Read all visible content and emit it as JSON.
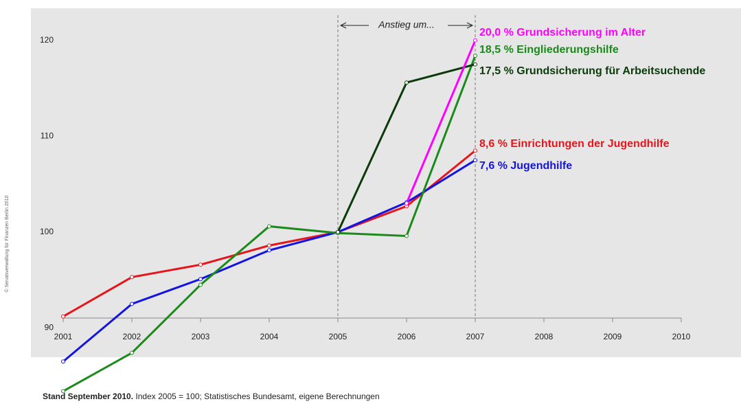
{
  "chart_data": {
    "type": "line",
    "annotation": "Anstieg um...",
    "credit": "© Senatsverwaltung für Finanzen Berlin 2010",
    "footnote_bold": "Stand September 2010.",
    "footnote": "Index 2005 = 100; Statistisches Bundesamt, eigene Berechnungen",
    "x": [
      2001,
      2002,
      2003,
      2004,
      2005,
      2006,
      2007,
      2008,
      2009,
      2010
    ],
    "xlim": [
      2001,
      2010
    ],
    "xticks": [
      2001,
      2002,
      2003,
      2004,
      2005,
      2006,
      2007,
      2008,
      2009,
      2010
    ],
    "ylim": [
      82,
      124
    ],
    "yticks": [
      90,
      100,
      110,
      120
    ],
    "series": [
      {
        "name": "8,6 %  Einrichtungen der Jugendhilfe",
        "color": "#e8141c",
        "values": [
          91.2,
          95.3,
          96.6,
          98.6,
          100,
          102.7,
          108.5,
          null,
          null,
          null
        ]
      },
      {
        "name": "7,6 %  Jugendhilfe",
        "color": "#1414e0",
        "values": [
          86.5,
          92.5,
          95.1,
          98.1,
          100,
          103.1,
          107.5,
          null,
          null,
          null
        ]
      },
      {
        "name": "18,5 % Eingliederungshilfe",
        "color": "#1a8a1a",
        "values": [
          83.4,
          87.4,
          94.5,
          100.6,
          99.9,
          99.6,
          118.4,
          null,
          null,
          null
        ]
      },
      {
        "name": "17,5 % Grundsicherung für Arbeitsuchende",
        "color": "#0a3a0a",
        "values": [
          null,
          null,
          null,
          null,
          100,
          115.6,
          117.5,
          null,
          null,
          null
        ]
      },
      {
        "name": "20,0 % Grundsicherung im Alter",
        "color": "#ff00ff",
        "values": [
          null,
          null,
          null,
          null,
          null,
          103,
          120,
          null,
          null,
          null
        ]
      }
    ]
  }
}
